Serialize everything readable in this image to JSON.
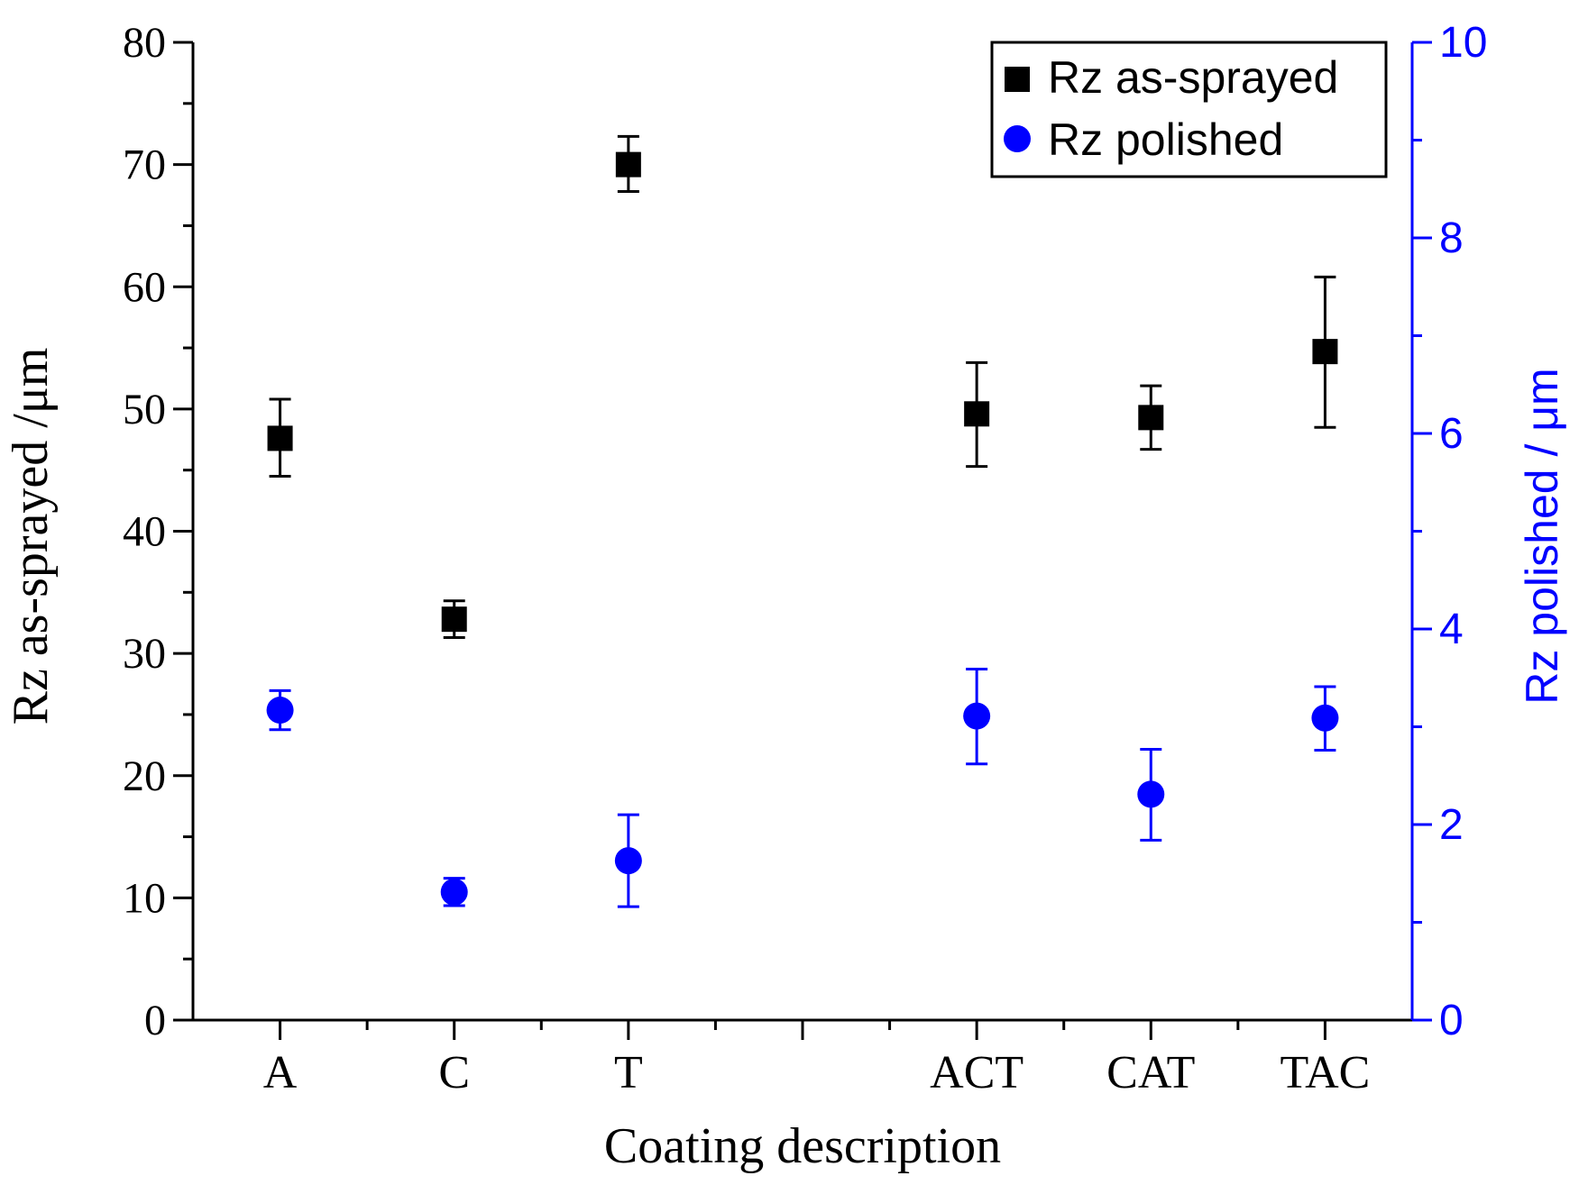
{
  "chart_data": {
    "type": "scatter",
    "title": "",
    "xlabel": "Coating description",
    "ylabel_left": "Rz as-sprayed /μm",
    "ylabel_right": "Rz polished / μm",
    "categories": [
      "A",
      "C",
      "T",
      "ACT",
      "CAT",
      "TAC"
    ],
    "category_positions": [
      1,
      2,
      3,
      5,
      6,
      7
    ],
    "xlim": [
      0.5,
      7.5
    ],
    "ylim_left": [
      0,
      80
    ],
    "ylim_right": [
      0,
      10
    ],
    "yticks_left": [
      "0",
      "10",
      "20",
      "30",
      "40",
      "50",
      "60",
      "70",
      "80"
    ],
    "yticks_right": [
      "0",
      "2",
      "4",
      "6",
      "8",
      "10"
    ],
    "grid": false,
    "legend_position": "top-right",
    "series": [
      {
        "name": "Rz as-sprayed",
        "axis": "left",
        "marker": "square",
        "color": "#000000",
        "values": [
          47.6,
          32.8,
          70.0,
          49.6,
          49.3,
          54.7
        ],
        "error_low": [
          44.5,
          31.3,
          67.8,
          45.3,
          46.7,
          48.5
        ],
        "error_high": [
          50.8,
          34.3,
          72.3,
          53.8,
          51.9,
          60.8
        ]
      },
      {
        "name": "Rz polished",
        "axis": "right",
        "marker": "circle",
        "color": "#0000ff",
        "values": [
          3.17,
          1.31,
          1.63,
          3.11,
          2.31,
          3.09
        ],
        "error_low": [
          2.97,
          1.17,
          1.16,
          2.62,
          1.84,
          2.76
        ],
        "error_high": [
          3.37,
          1.45,
          2.1,
          3.59,
          2.77,
          3.41
        ]
      }
    ]
  }
}
